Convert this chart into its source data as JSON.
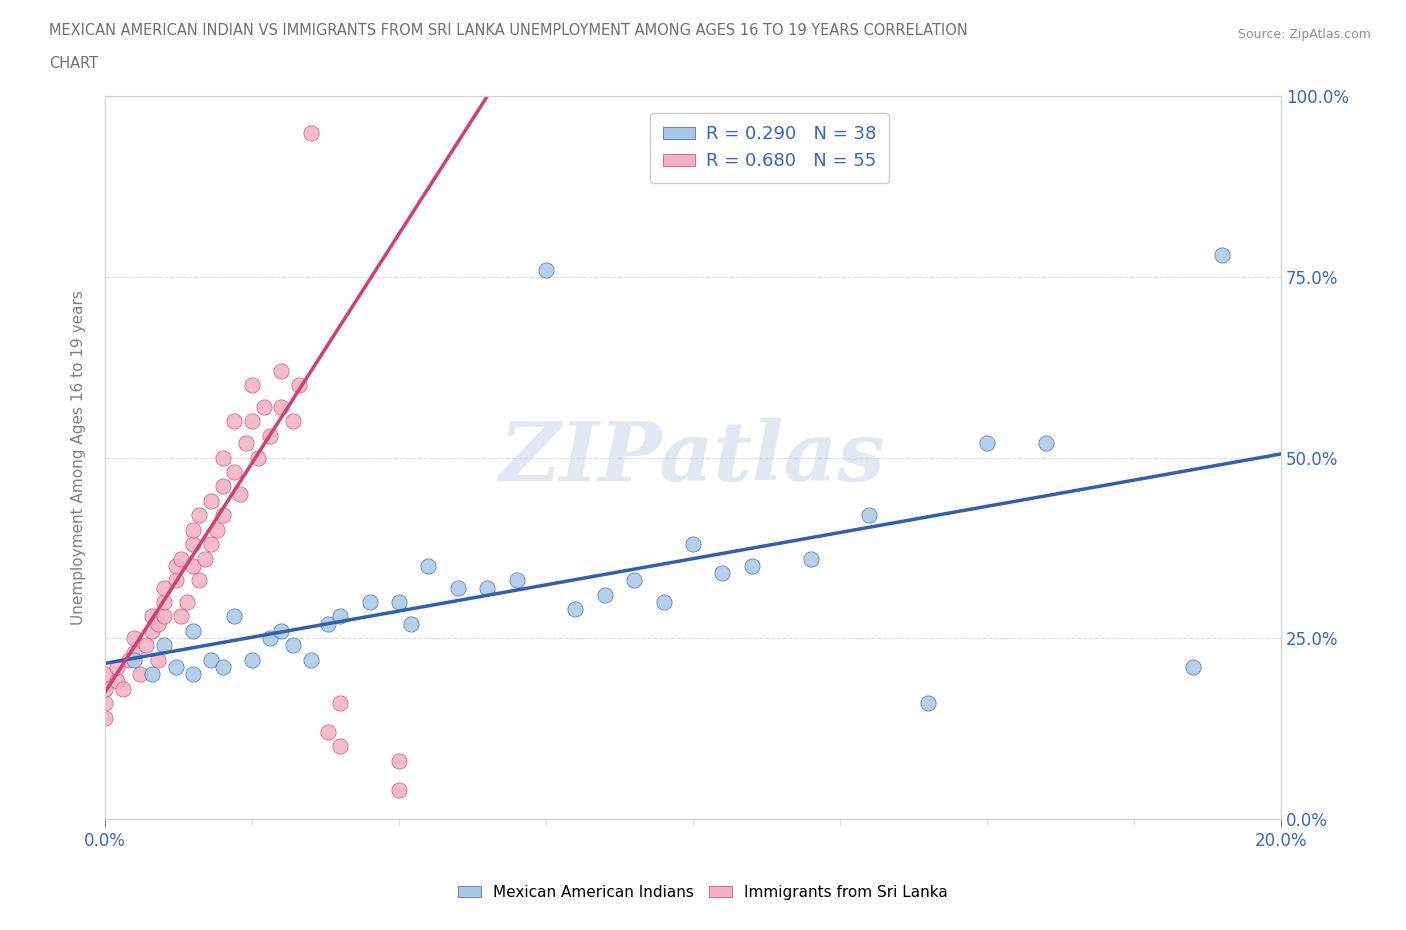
{
  "title_line1": "MEXICAN AMERICAN INDIAN VS IMMIGRANTS FROM SRI LANKA UNEMPLOYMENT AMONG AGES 16 TO 19 YEARS CORRELATION",
  "title_line2": "CHART",
  "source": "Source: ZipAtlas.com",
  "ylabel": "Unemployment Among Ages 16 to 19 years",
  "xmin": 0.0,
  "xmax": 0.2,
  "ymin": 0.0,
  "ymax": 1.0,
  "blue_R": 0.29,
  "blue_N": 38,
  "pink_R": 0.68,
  "pink_N": 55,
  "blue_color": "#a8c8e8",
  "pink_color": "#f4b0c0",
  "blue_line_color": "#3060b0",
  "pink_line_color": "#d04070",
  "watermark": "ZIPatlas",
  "legend_label_blue": "Mexican American Indians",
  "legend_label_pink": "Immigrants from Sri Lanka",
  "blue_scatter_x": [
    0.005,
    0.008,
    0.01,
    0.012,
    0.015,
    0.015,
    0.018,
    0.02,
    0.022,
    0.025,
    0.028,
    0.03,
    0.032,
    0.035,
    0.038,
    0.04,
    0.045,
    0.05,
    0.052,
    0.055,
    0.06,
    0.065,
    0.07,
    0.075,
    0.08,
    0.085,
    0.09,
    0.095,
    0.1,
    0.105,
    0.11,
    0.12,
    0.13,
    0.14,
    0.15,
    0.16,
    0.185,
    0.19
  ],
  "blue_scatter_y": [
    0.22,
    0.2,
    0.24,
    0.21,
    0.26,
    0.2,
    0.22,
    0.21,
    0.28,
    0.22,
    0.25,
    0.26,
    0.24,
    0.22,
    0.27,
    0.28,
    0.3,
    0.3,
    0.27,
    0.35,
    0.32,
    0.32,
    0.33,
    0.76,
    0.29,
    0.31,
    0.33,
    0.3,
    0.38,
    0.34,
    0.35,
    0.36,
    0.42,
    0.16,
    0.52,
    0.52,
    0.21,
    0.78
  ],
  "pink_scatter_x": [
    0.0,
    0.0,
    0.0,
    0.0,
    0.002,
    0.002,
    0.003,
    0.004,
    0.005,
    0.005,
    0.006,
    0.007,
    0.008,
    0.008,
    0.009,
    0.009,
    0.01,
    0.01,
    0.01,
    0.012,
    0.012,
    0.013,
    0.013,
    0.014,
    0.015,
    0.015,
    0.015,
    0.016,
    0.016,
    0.017,
    0.018,
    0.018,
    0.019,
    0.02,
    0.02,
    0.02,
    0.022,
    0.022,
    0.023,
    0.024,
    0.025,
    0.025,
    0.026,
    0.027,
    0.028,
    0.03,
    0.03,
    0.032,
    0.033,
    0.035,
    0.038,
    0.04,
    0.04,
    0.05,
    0.05
  ],
  "pink_scatter_y": [
    0.16,
    0.18,
    0.2,
    0.14,
    0.19,
    0.21,
    0.18,
    0.22,
    0.23,
    0.25,
    0.2,
    0.24,
    0.26,
    0.28,
    0.22,
    0.27,
    0.28,
    0.3,
    0.32,
    0.33,
    0.35,
    0.28,
    0.36,
    0.3,
    0.35,
    0.38,
    0.4,
    0.33,
    0.42,
    0.36,
    0.38,
    0.44,
    0.4,
    0.42,
    0.46,
    0.5,
    0.48,
    0.55,
    0.45,
    0.52,
    0.55,
    0.6,
    0.5,
    0.57,
    0.53,
    0.57,
    0.62,
    0.55,
    0.6,
    0.95,
    0.12,
    0.16,
    0.1,
    0.08,
    0.04
  ],
  "pink_line_x0": 0.0,
  "pink_line_y0": 0.175,
  "pink_line_x1": 0.065,
  "pink_line_y1": 1.0,
  "blue_line_x0": 0.0,
  "blue_line_y0": 0.215,
  "blue_line_x1": 0.2,
  "blue_line_y1": 0.505
}
